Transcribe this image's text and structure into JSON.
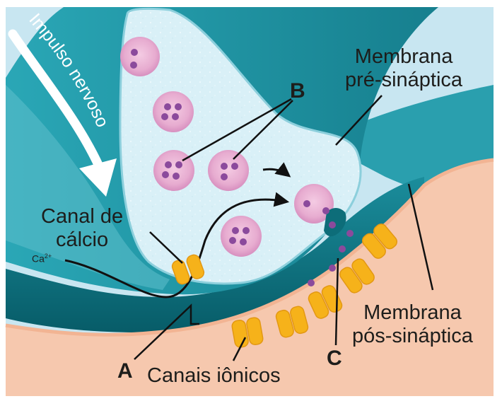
{
  "labels": {
    "impulse": "Impulso nervoso",
    "presynaptic_line1": "Membrana",
    "presynaptic_line2": "pré-sináptica",
    "postsynaptic_line1": "Membrana",
    "postsynaptic_line2": "pós-sináptica",
    "calcium_channel_line1": "Canal de",
    "calcium_channel_line2": "cálcio",
    "ion_channels": "Canais iônicos",
    "calcium_ion": "Ca",
    "calcium_charge": "2+",
    "letter_a": "A",
    "letter_b": "B",
    "letter_c": "C"
  },
  "colors": {
    "extracellular": "#c8e6f1",
    "presynaptic_membrane": "#1e97a8",
    "terminal_interior": "#d6eef6",
    "synaptic_cleft": "#0d6d79",
    "postsynaptic_cell": "#f6c8ae",
    "vesicle": "#eab2d4",
    "neurotransmitter": "#8b4a9c",
    "ion_channel": "#f6b21a"
  }
}
